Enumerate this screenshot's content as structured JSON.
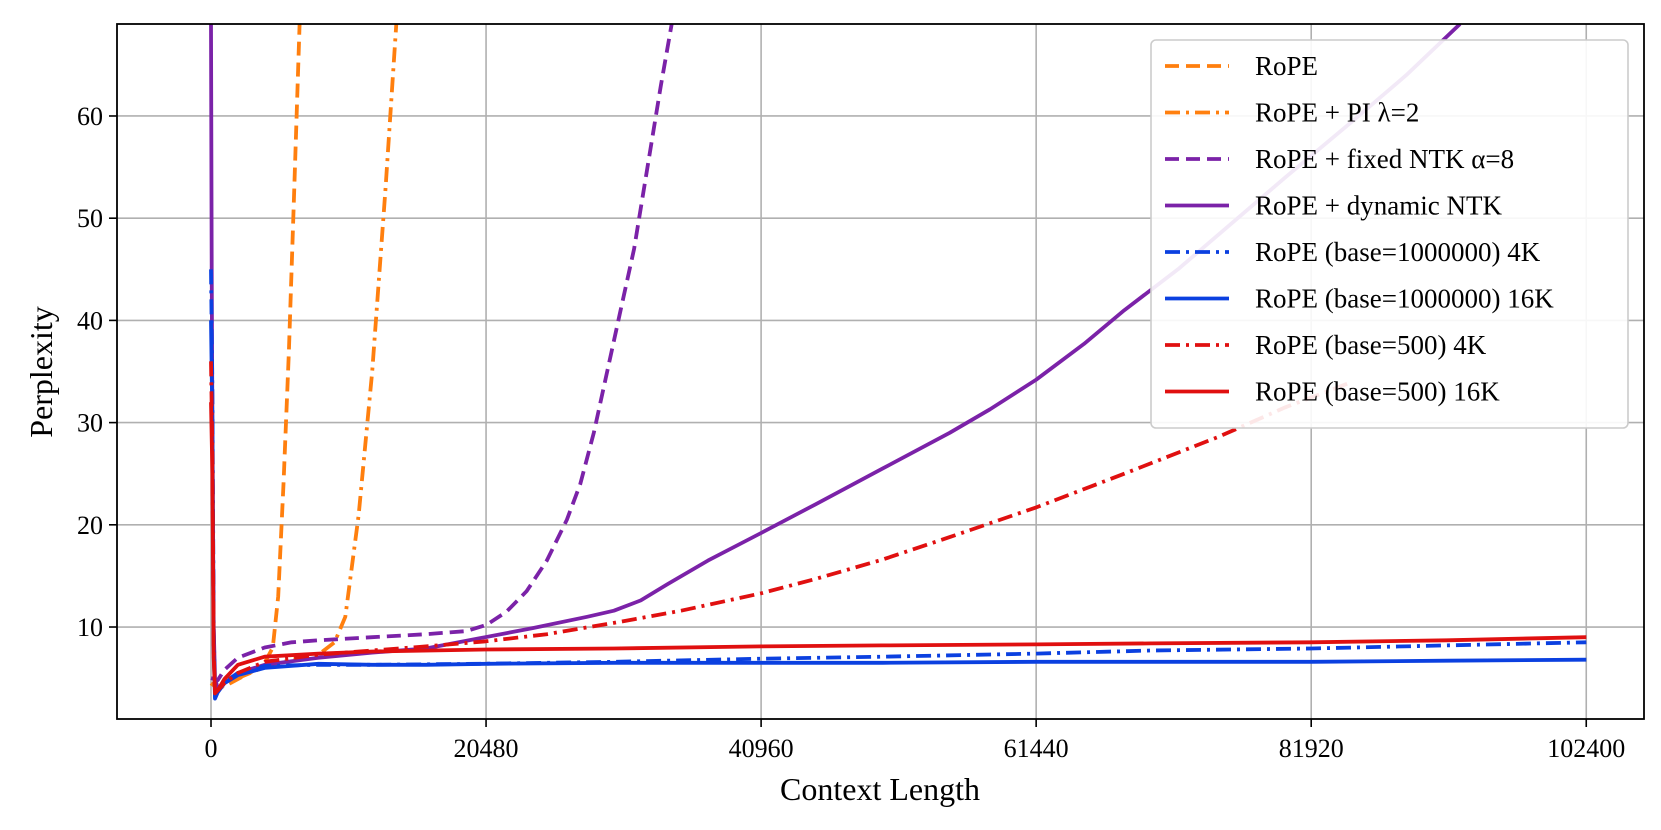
{
  "chart_data": {
    "type": "line",
    "xlabel": "Context Length",
    "ylabel": "Perplexity",
    "xlim": [
      -7000,
      106700
    ],
    "ylim": [
      1,
      69
    ],
    "xticks": [
      0,
      20480,
      40960,
      61440,
      81920,
      102400
    ],
    "xtick_labels": [
      "0",
      "20480",
      "40960",
      "61440",
      "81920",
      "102400"
    ],
    "yticks": [
      10,
      20,
      30,
      40,
      50,
      60
    ],
    "ytick_labels": [
      "10",
      "20",
      "30",
      "40",
      "50",
      "60"
    ],
    "grid": true,
    "legend_position": "top-right",
    "series": [
      {
        "name": "RoPE",
        "color": "#ff7f0e",
        "dash": "dashed",
        "points": [
          [
            0,
            4.5
          ],
          [
            500,
            4.0
          ],
          [
            1000,
            4.2
          ],
          [
            2000,
            4.9
          ],
          [
            3000,
            5.6
          ],
          [
            4000,
            6.5
          ],
          [
            4600,
            8.0
          ],
          [
            5000,
            13.0
          ],
          [
            5400,
            24.0
          ],
          [
            5800,
            37.0
          ],
          [
            6200,
            53.0
          ],
          [
            6600,
            69.0
          ]
        ]
      },
      {
        "name": "RoPE + PI λ=2",
        "color": "#ff7f0e",
        "dash": "dashdot",
        "points": [
          [
            0,
            4.5
          ],
          [
            500,
            4.0
          ],
          [
            1000,
            4.3
          ],
          [
            2000,
            5.0
          ],
          [
            4000,
            6.1
          ],
          [
            6000,
            6.8
          ],
          [
            8000,
            7.3
          ],
          [
            9200,
            8.5
          ],
          [
            10000,
            11.0
          ],
          [
            11000,
            21.0
          ],
          [
            12000,
            35.0
          ],
          [
            13000,
            53.0
          ],
          [
            13800,
            69.0
          ]
        ]
      },
      {
        "name": "RoPE + fixed NTK α=8",
        "color": "#7b22a8",
        "dash": "dashed",
        "points": [
          [
            0,
            5.0
          ],
          [
            500,
            4.8
          ],
          [
            1000,
            5.8
          ],
          [
            2000,
            7.0
          ],
          [
            4000,
            8.0
          ],
          [
            6000,
            8.5
          ],
          [
            8000,
            8.7
          ],
          [
            12000,
            9.0
          ],
          [
            16000,
            9.3
          ],
          [
            19000,
            9.6
          ],
          [
            20500,
            10.2
          ],
          [
            22000,
            11.5
          ],
          [
            23500,
            13.5
          ],
          [
            25000,
            16.5
          ],
          [
            26500,
            20.5
          ],
          [
            27500,
            24.0
          ],
          [
            28500,
            29.0
          ],
          [
            29500,
            35.0
          ],
          [
            30500,
            41.0
          ],
          [
            31500,
            47.0
          ],
          [
            32500,
            55.0
          ],
          [
            33500,
            63.0
          ],
          [
            34300,
            69.0
          ]
        ]
      },
      {
        "name": "RoPE + dynamic NTK",
        "color": "#7b22a8",
        "dash": "solid",
        "points": [
          [
            0,
            69.0
          ],
          [
            50,
            45.0
          ],
          [
            100,
            30.0
          ],
          [
            150,
            18.0
          ],
          [
            200,
            10.0
          ],
          [
            300,
            5.0
          ],
          [
            500,
            4.0
          ],
          [
            1000,
            4.5
          ],
          [
            2000,
            5.5
          ],
          [
            4000,
            6.3
          ],
          [
            8000,
            7.0
          ],
          [
            12000,
            7.5
          ],
          [
            16000,
            7.9
          ],
          [
            20000,
            8.9
          ],
          [
            24000,
            9.9
          ],
          [
            28000,
            11.0
          ],
          [
            30000,
            11.6
          ],
          [
            32000,
            12.6
          ],
          [
            34000,
            14.2
          ],
          [
            37000,
            16.5
          ],
          [
            40960,
            19.2
          ],
          [
            45000,
            22.0
          ],
          [
            50000,
            25.5
          ],
          [
            55000,
            29.0
          ],
          [
            58000,
            31.3
          ],
          [
            61440,
            34.2
          ],
          [
            65000,
            37.7
          ],
          [
            68000,
            41.0
          ],
          [
            72000,
            45.0
          ],
          [
            76000,
            49.5
          ],
          [
            80000,
            54.0
          ],
          [
            85000,
            59.5
          ],
          [
            89000,
            64.0
          ],
          [
            93000,
            69.0
          ]
        ]
      },
      {
        "name": "RoPE (base=1000000) 4K",
        "color": "#0b40e0",
        "dash": "dashdot",
        "points": [
          [
            0,
            45.0
          ],
          [
            100,
            33.0
          ],
          [
            200,
            10.0
          ],
          [
            300,
            3.2
          ],
          [
            500,
            3.8
          ],
          [
            1000,
            4.6
          ],
          [
            2000,
            5.5
          ],
          [
            4000,
            6.2
          ],
          [
            8000,
            6.3
          ],
          [
            12000,
            6.3
          ],
          [
            20000,
            6.4
          ],
          [
            30000,
            6.6
          ],
          [
            40960,
            6.9
          ],
          [
            50000,
            7.1
          ],
          [
            61440,
            7.4
          ],
          [
            70000,
            7.7
          ],
          [
            81920,
            7.9
          ],
          [
            92000,
            8.2
          ],
          [
            102400,
            8.5
          ]
        ]
      },
      {
        "name": "RoPE (base=1000000) 16K",
        "color": "#0b40e0",
        "dash": "solid",
        "points": [
          [
            0,
            40.0
          ],
          [
            100,
            30.0
          ],
          [
            200,
            8.0
          ],
          [
            300,
            3.0
          ],
          [
            500,
            3.6
          ],
          [
            1000,
            4.5
          ],
          [
            2000,
            5.3
          ],
          [
            4000,
            6.0
          ],
          [
            8000,
            6.4
          ],
          [
            12000,
            6.3
          ],
          [
            16000,
            6.3
          ],
          [
            20480,
            6.4
          ],
          [
            30000,
            6.5
          ],
          [
            40960,
            6.5
          ],
          [
            50000,
            6.5
          ],
          [
            61440,
            6.6
          ],
          [
            70000,
            6.6
          ],
          [
            81920,
            6.6
          ],
          [
            92000,
            6.7
          ],
          [
            102400,
            6.8
          ]
        ]
      },
      {
        "name": "RoPE (base=500) 4K",
        "color": "#e01010",
        "dash": "dashdot",
        "points": [
          [
            0,
            36.0
          ],
          [
            100,
            27.0
          ],
          [
            200,
            8.0
          ],
          [
            300,
            3.6
          ],
          [
            500,
            3.8
          ],
          [
            1000,
            4.5
          ],
          [
            2000,
            5.5
          ],
          [
            4000,
            6.6
          ],
          [
            8000,
            7.3
          ],
          [
            12000,
            7.7
          ],
          [
            16000,
            8.1
          ],
          [
            20480,
            8.6
          ],
          [
            25000,
            9.3
          ],
          [
            30000,
            10.4
          ],
          [
            35000,
            11.6
          ],
          [
            40960,
            13.3
          ],
          [
            45000,
            14.7
          ],
          [
            50000,
            16.6
          ],
          [
            55000,
            18.8
          ],
          [
            61440,
            21.7
          ],
          [
            68000,
            25.0
          ],
          [
            75000,
            28.6
          ],
          [
            80000,
            31.5
          ],
          [
            85000,
            34.0
          ]
        ]
      },
      {
        "name": "RoPE (base=500) 16K",
        "color": "#e01010",
        "dash": "solid",
        "points": [
          [
            0,
            32.0
          ],
          [
            100,
            25.0
          ],
          [
            200,
            7.0
          ],
          [
            300,
            3.5
          ],
          [
            500,
            3.8
          ],
          [
            1000,
            4.9
          ],
          [
            2000,
            6.3
          ],
          [
            4000,
            7.1
          ],
          [
            8000,
            7.4
          ],
          [
            12000,
            7.6
          ],
          [
            20480,
            7.8
          ],
          [
            30000,
            7.9
          ],
          [
            40960,
            8.1
          ],
          [
            50000,
            8.2
          ],
          [
            61440,
            8.3
          ],
          [
            70000,
            8.4
          ],
          [
            81920,
            8.5
          ],
          [
            92000,
            8.7
          ],
          [
            102400,
            9.0
          ]
        ]
      }
    ]
  }
}
